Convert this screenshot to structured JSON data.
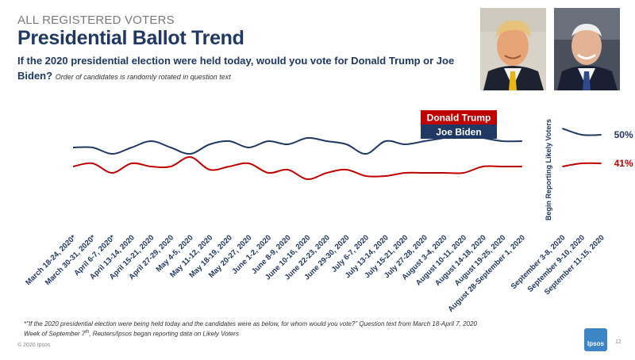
{
  "header": {
    "supertitle": "ALL REGISTERED VOTERS",
    "title": "Presidential Ballot Trend",
    "question": "If the 2020 presidential election were held today, would you vote for Donald Trump or Joe Biden?",
    "question_note": "Order of candidates is randomly rotated in question text"
  },
  "colors": {
    "trump": "#c00000",
    "biden": "#1f3864"
  },
  "chart_data": {
    "type": "line",
    "categories": [
      "March 18-24, 2020*",
      "March 30-31, 2020*",
      "April 6-7, 2020*",
      "April 13-14, 2020",
      "April 15-21, 2020",
      "April 27-29, 2020",
      "May 4-5, 2020",
      "May 11-12, 2020",
      "May 18-19, 2020",
      "May 20-27, 2020",
      "June 1-2, 2020",
      "June 8-9, 2020",
      "June 10-16, 2020",
      "June 22-23, 2020",
      "June 29-30, 2020",
      "July 6-7, 2020",
      "July 13-14, 2020",
      "July 15-21, 2020",
      "July 27-28, 2020",
      "August 3-4, 2020",
      "August 10-11, 2020",
      "August 14-18, 2020",
      "August 19-25, 2020",
      "August 28-September 1, 2020",
      "September 3-8, 2020",
      "September 9-10, 2020",
      "September 11-15, 2020"
    ],
    "period_break_after_index": 23,
    "period_label": "Begin Reporting Likely Voters",
    "series": [
      {
        "name": "Joe Biden",
        "values": [
          46,
          46,
          44,
          46,
          48,
          46,
          44,
          47,
          48,
          46,
          48,
          47,
          49,
          48,
          47,
          44,
          48,
          47,
          48,
          49,
          50,
          49,
          48,
          48,
          52,
          50,
          50
        ]
      },
      {
        "name": "Donald Trump",
        "values": [
          40,
          41,
          38,
          41,
          40,
          40,
          43,
          39,
          40,
          41,
          38,
          39,
          36,
          38,
          39,
          37,
          37,
          38,
          38,
          38,
          38,
          40,
          40,
          40,
          40,
          41,
          41
        ]
      }
    ],
    "end_labels": {
      "Joe Biden": "50%",
      "Donald Trump": "41%"
    },
    "legend_position": "top-right",
    "grid": false,
    "ylim": [
      20,
      60
    ]
  },
  "footer": {
    "footnote_line1": "*\"If the 2020 presidential election were being held today and the candidates were as below, for whom would you vote?\" Question text from March 18-April 7, 2020",
    "footnote_line2_pre": "Week of September 7",
    "footnote_line2_sup": "th",
    "footnote_line2_post": ", Reuters/Ipsos began reporting data on Likely Voters",
    "copyright": "© 2020 Ipsos",
    "page_number": "12",
    "logo_text": "Ipsos"
  }
}
